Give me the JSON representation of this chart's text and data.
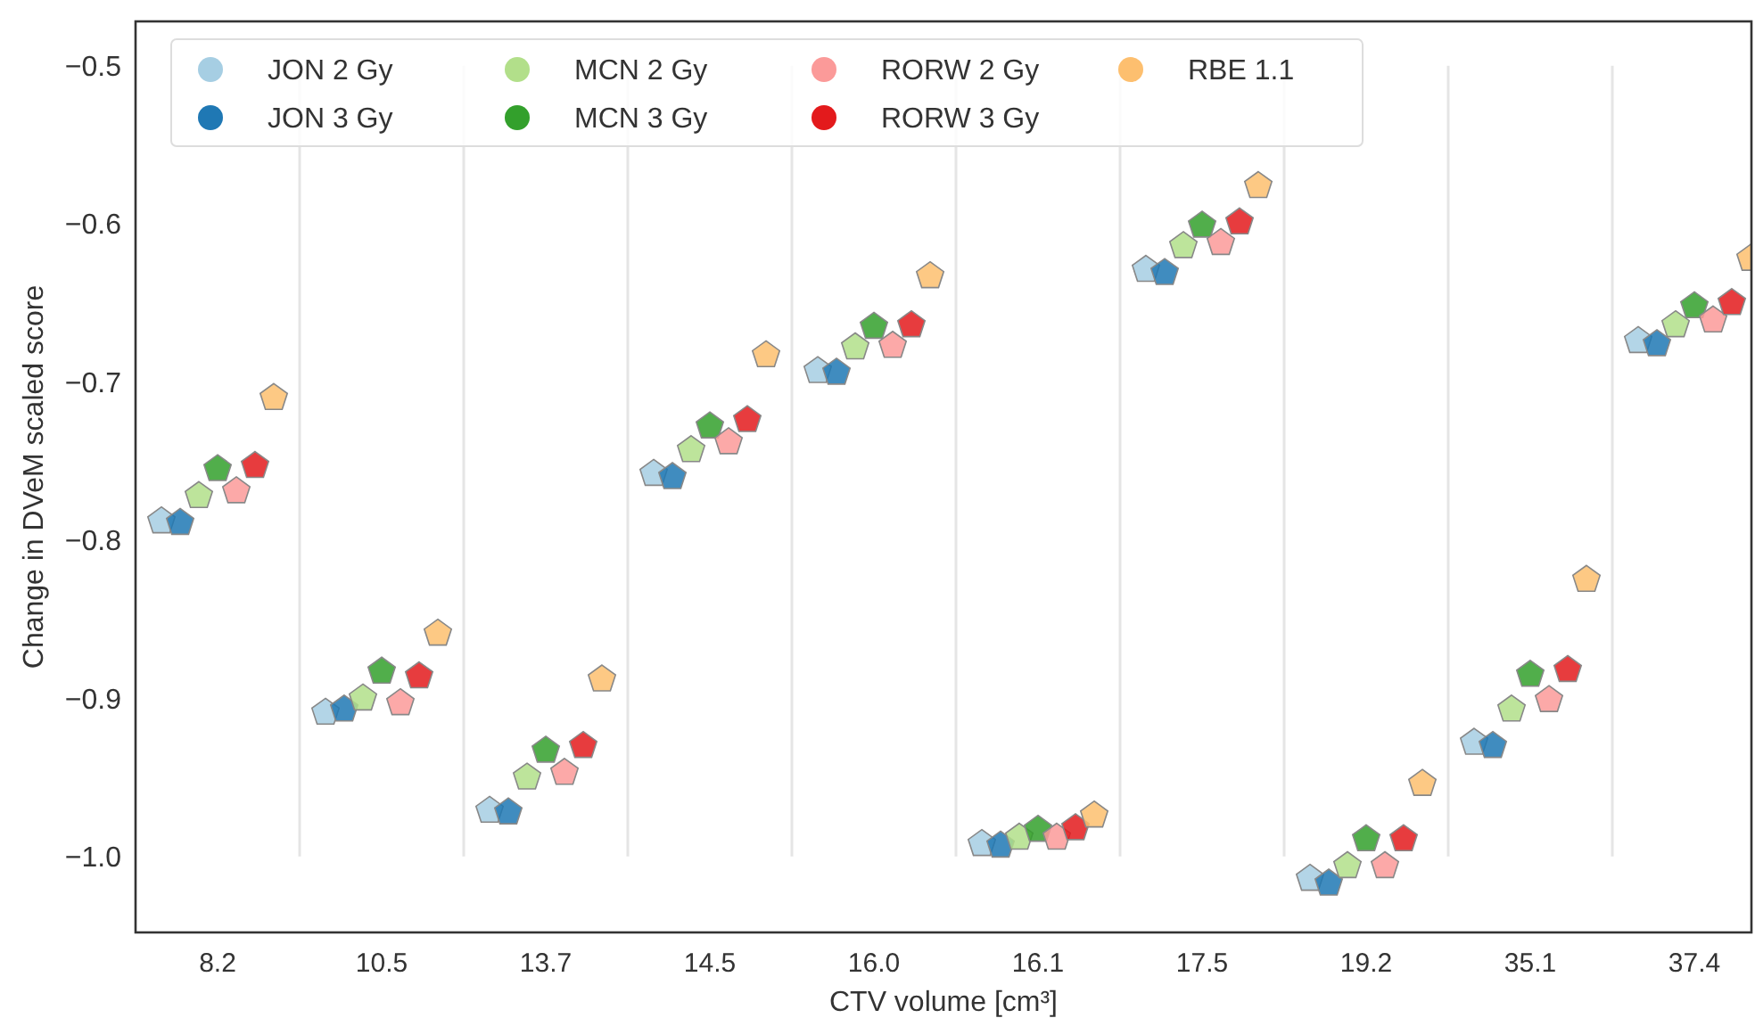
{
  "chart_data": {
    "type": "scatter",
    "xlabel": "CTV volume [cm³]",
    "ylabel": "Change in DVeM scaled score",
    "categories": [
      "8.2",
      "10.5",
      "13.7",
      "14.5",
      "16.0",
      "16.1",
      "17.5",
      "19.2",
      "35.1",
      "37.4"
    ],
    "ylim": [
      -1.048,
      -0.472
    ],
    "yticks": [
      {
        "value": -1.0,
        "label": "−1.0"
      },
      -0.9,
      -0.8,
      -0.7,
      -0.6,
      -0.5
    ],
    "grid": "x",
    "legend": "top",
    "series": [
      {
        "name": "JON 2 Gy",
        "color": "#a6cee3",
        "values": [
          -0.788,
          -0.909,
          -0.971,
          -0.758,
          -0.693,
          -0.992,
          -0.629,
          -1.014,
          -0.928,
          -0.674
        ]
      },
      {
        "name": "JON 3 Gy",
        "color": "#1f78b4",
        "values": [
          -0.789,
          -0.907,
          -0.972,
          -0.76,
          -0.694,
          -0.993,
          -0.631,
          -1.017,
          -0.93,
          -0.676
        ]
      },
      {
        "name": "MCN 2 Gy",
        "color": "#b2df8a",
        "values": [
          -0.772,
          -0.9,
          -0.95,
          -0.743,
          -0.678,
          -0.988,
          -0.614,
          -1.006,
          -0.907,
          -0.664
        ]
      },
      {
        "name": "MCN 3 Gy",
        "color": "#33a02c",
        "values": [
          -0.755,
          -0.883,
          -0.933,
          -0.728,
          -0.665,
          -0.983,
          -0.601,
          -0.989,
          -0.885,
          -0.652
        ]
      },
      {
        "name": "RORW 2 Gy",
        "color": "#fb9a99",
        "values": [
          -0.769,
          -0.903,
          -0.947,
          -0.738,
          -0.677,
          -0.988,
          -0.612,
          -1.006,
          -0.901,
          -0.661
        ]
      },
      {
        "name": "RORW 3 Gy",
        "color": "#e31a1c",
        "values": [
          -0.753,
          -0.886,
          -0.93,
          -0.724,
          -0.664,
          -0.982,
          -0.599,
          -0.989,
          -0.882,
          -0.65
        ]
      },
      {
        "name": "RBE 1.1",
        "color": "#fdbf6f",
        "values": [
          -0.71,
          -0.859,
          -0.888,
          -0.683,
          -0.633,
          -0.974,
          -0.576,
          -0.954,
          -0.825,
          -0.622
        ]
      }
    ]
  }
}
